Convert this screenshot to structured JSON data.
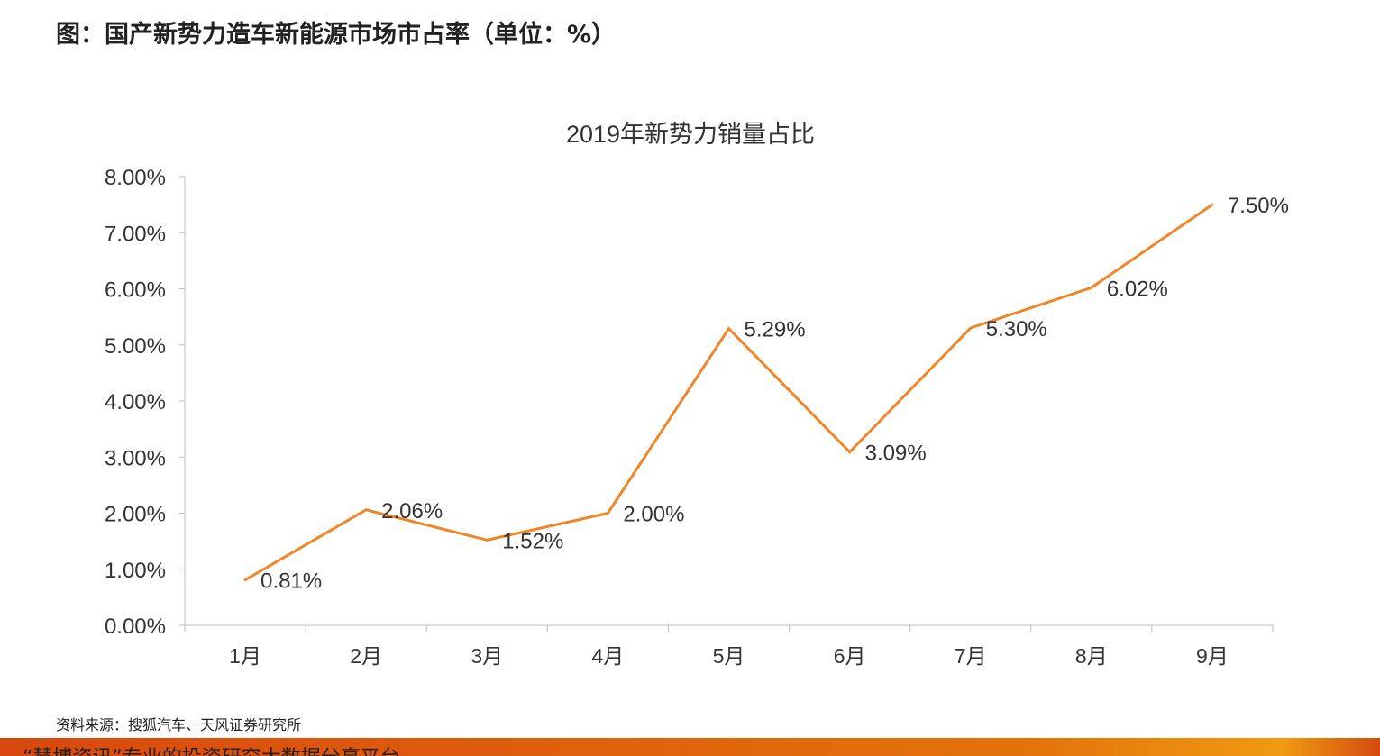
{
  "page_title": "图：国产新势力造车新能源市场市占率（单位：%）",
  "source": "资料来源：搜狐汽车、天风证券研究所",
  "banner_text": "“慧博资讯”专业的投资研究大数据分享平台",
  "chart_data": {
    "type": "line",
    "title": "2019年新势力销量占比",
    "categories": [
      "1月",
      "2月",
      "3月",
      "4月",
      "5月",
      "6月",
      "7月",
      "8月",
      "9月"
    ],
    "values": [
      0.81,
      2.06,
      1.52,
      2.0,
      5.29,
      3.09,
      5.3,
      6.02,
      7.5
    ],
    "data_labels": [
      "0.81%",
      "2.06%",
      "1.52%",
      "2.00%",
      "5.29%",
      "3.09%",
      "5.30%",
      "6.02%",
      "7.50%"
    ],
    "yticks": [
      "0.00%",
      "1.00%",
      "2.00%",
      "3.00%",
      "4.00%",
      "5.00%",
      "6.00%",
      "7.00%",
      "8.00%"
    ],
    "ylim": [
      0,
      8
    ],
    "grid": false,
    "line_color": "#F0862A"
  }
}
